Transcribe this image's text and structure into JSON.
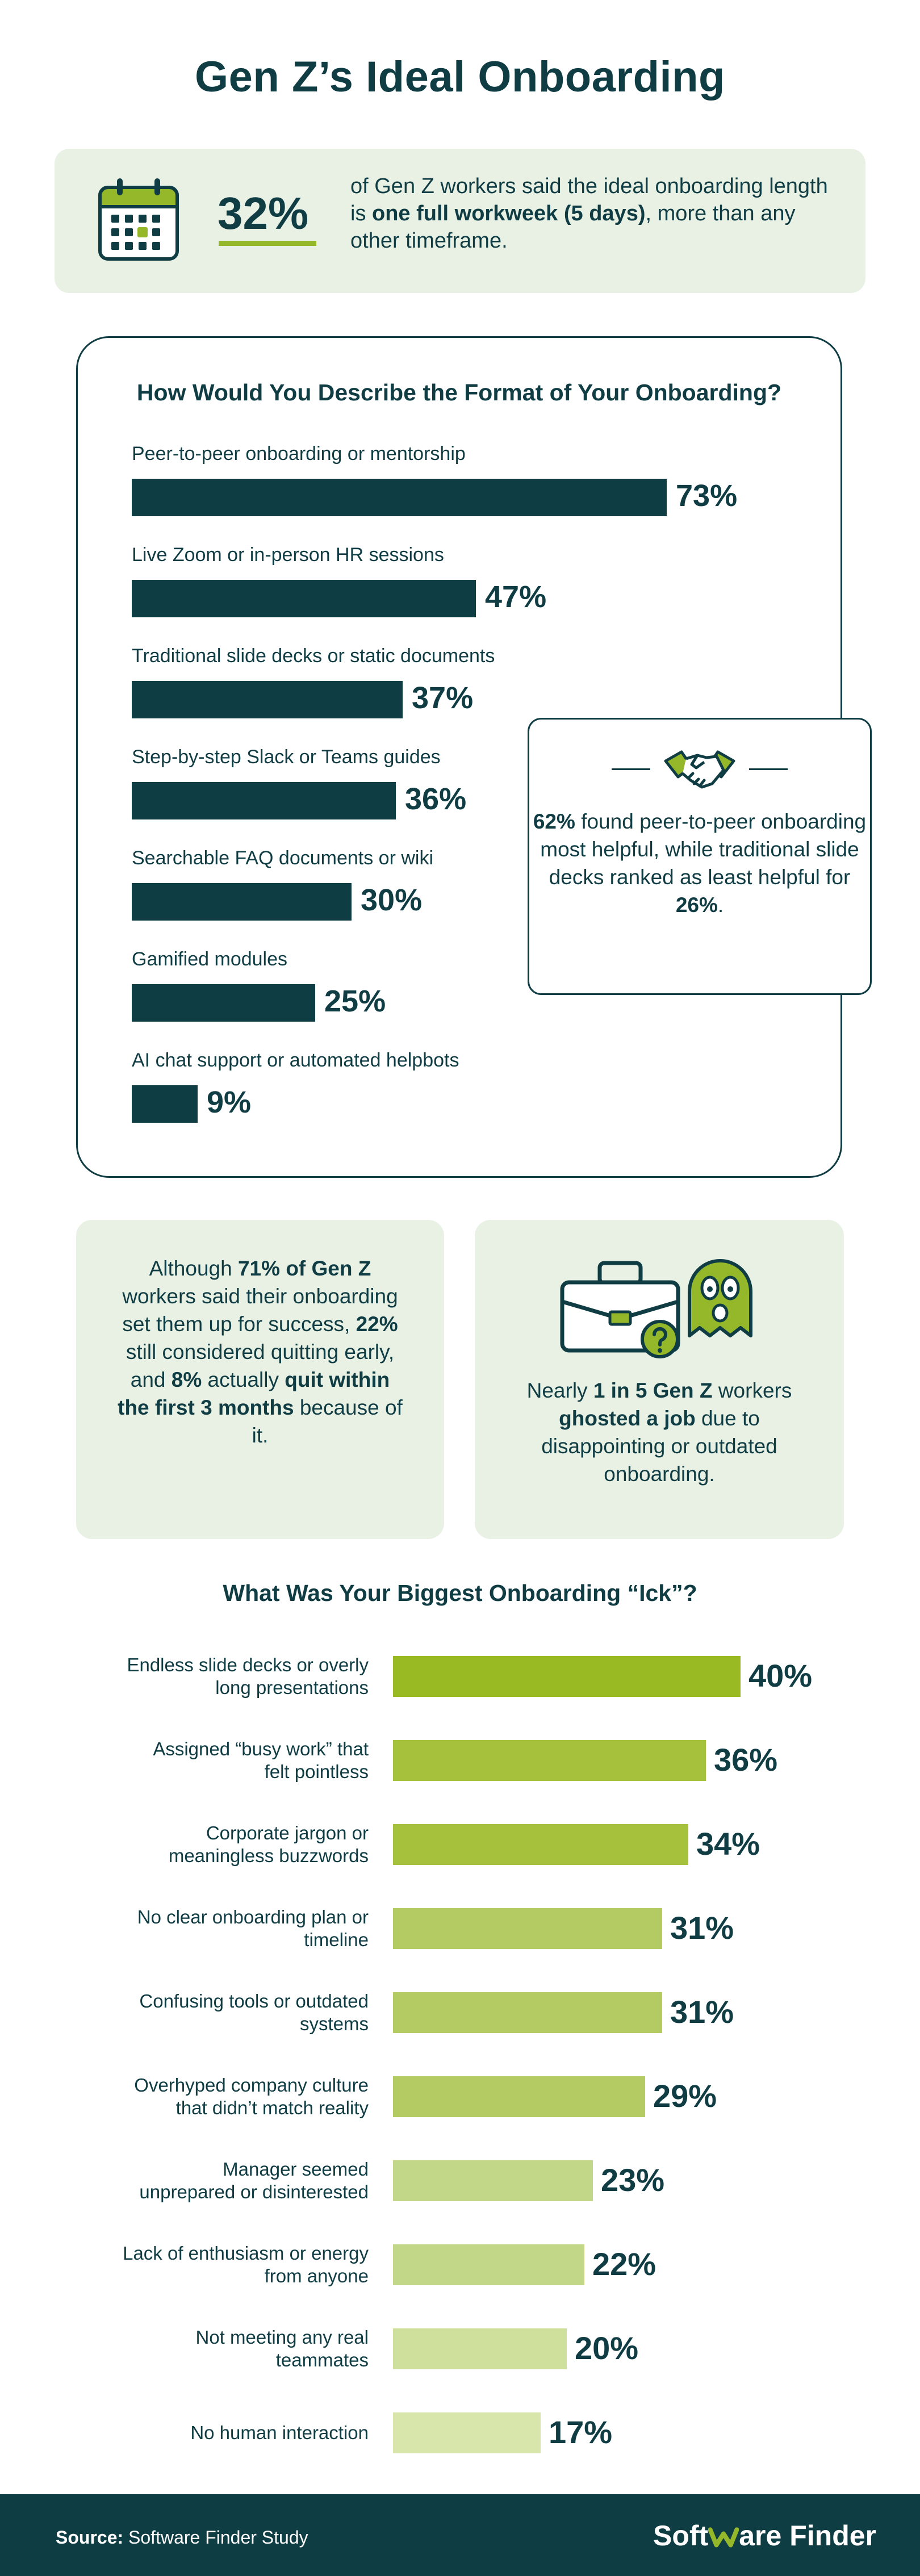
{
  "title": "Gen Z’s Ideal Onboarding",
  "banner": {
    "percent": "32%",
    "text_pre": "of Gen Z workers said the ideal onboarding length is ",
    "text_bold": "one full workweek (5 days)",
    "text_post": ", more than any other timeframe.",
    "icon": "calendar-icon"
  },
  "format_chart": {
    "title": "How Would You Describe the Format of Your Onboarding?",
    "callout": {
      "icon": "handshake-icon",
      "bold1": "62%",
      "text1": " found peer-to-peer onboarding most helpful, while traditional slide decks ranked as least helpful for ",
      "bold2": "26%",
      "text2": "."
    }
  },
  "stats": {
    "left": {
      "t1": "Although ",
      "b1": "71% of Gen Z",
      "t2": " workers said their onboarding set them up for success, ",
      "b2": "22%",
      "t3": " still considered quitting early, and ",
      "b3": "8%",
      "t4": " actually ",
      "b4": "quit within the first 3 months",
      "t5": " because of it."
    },
    "right": {
      "icons": [
        "briefcase-icon",
        "question-icon",
        "ghost-icon"
      ],
      "t1": "Nearly ",
      "b1": "1 in 5 Gen Z",
      "t2": " workers ",
      "b2": "ghosted a job",
      "t3": " due to disappointing or outdated onboarding."
    }
  },
  "ick_chart": {
    "title": "What Was Your Biggest Onboarding “Ick”?"
  },
  "chart_data": [
    {
      "type": "bar",
      "orientation": "horizontal",
      "title": "How Would You Describe the Format of Your Onboarding?",
      "categories": [
        "Peer-to-peer onboarding or mentorship",
        "Live Zoom or in-person HR sessions",
        "Traditional slide decks or static documents",
        "Step-by-step Slack or Teams guides",
        "Searchable FAQ documents or wiki",
        "Gamified modules",
        "AI chat support or automated helpbots"
      ],
      "values": [
        73,
        47,
        37,
        36,
        30,
        25,
        9
      ],
      "labels": [
        "73%",
        "47%",
        "37%",
        "36%",
        "30%",
        "25%",
        "9%"
      ],
      "unit": "%",
      "bar_color": "#0f3d44"
    },
    {
      "type": "bar",
      "orientation": "horizontal",
      "title": "What Was Your Biggest Onboarding “Ick”?",
      "categories": [
        [
          "Endless slide decks or overly",
          "long presentations"
        ],
        [
          "Assigned “busy work” that",
          "felt pointless"
        ],
        [
          "Corporate jargon or",
          "meaningless buzzwords"
        ],
        [
          "No clear onboarding plan or",
          "timeline"
        ],
        [
          "Confusing tools or outdated",
          "systems"
        ],
        [
          "Overhyped company culture",
          "that didn’t match reality"
        ],
        [
          "Manager seemed",
          "unprepared or disinterested"
        ],
        [
          "Lack of enthusiasm or energy",
          "from anyone"
        ],
        [
          "Not meeting any real",
          "teammates"
        ],
        [
          "No human interaction"
        ]
      ],
      "values": [
        40,
        36,
        34,
        31,
        31,
        29,
        23,
        22,
        20,
        17
      ],
      "labels": [
        "40%",
        "36%",
        "34%",
        "31%",
        "31%",
        "29%",
        "23%",
        "22%",
        "20%",
        "17%"
      ],
      "unit": "%",
      "bar_colors": [
        "#9aba24",
        "#a6c23d",
        "#a6c23d",
        "#b3cb62",
        "#b3cb62",
        "#b3cb62",
        "#c3d789",
        "#c3d789",
        "#cfdf9c",
        "#d8e6ac"
      ]
    }
  ],
  "footer": {
    "source_label": "Source:",
    "source_text": " Software Finder Study",
    "logo_pre": "Soft",
    "logo_post": "are Finder"
  }
}
